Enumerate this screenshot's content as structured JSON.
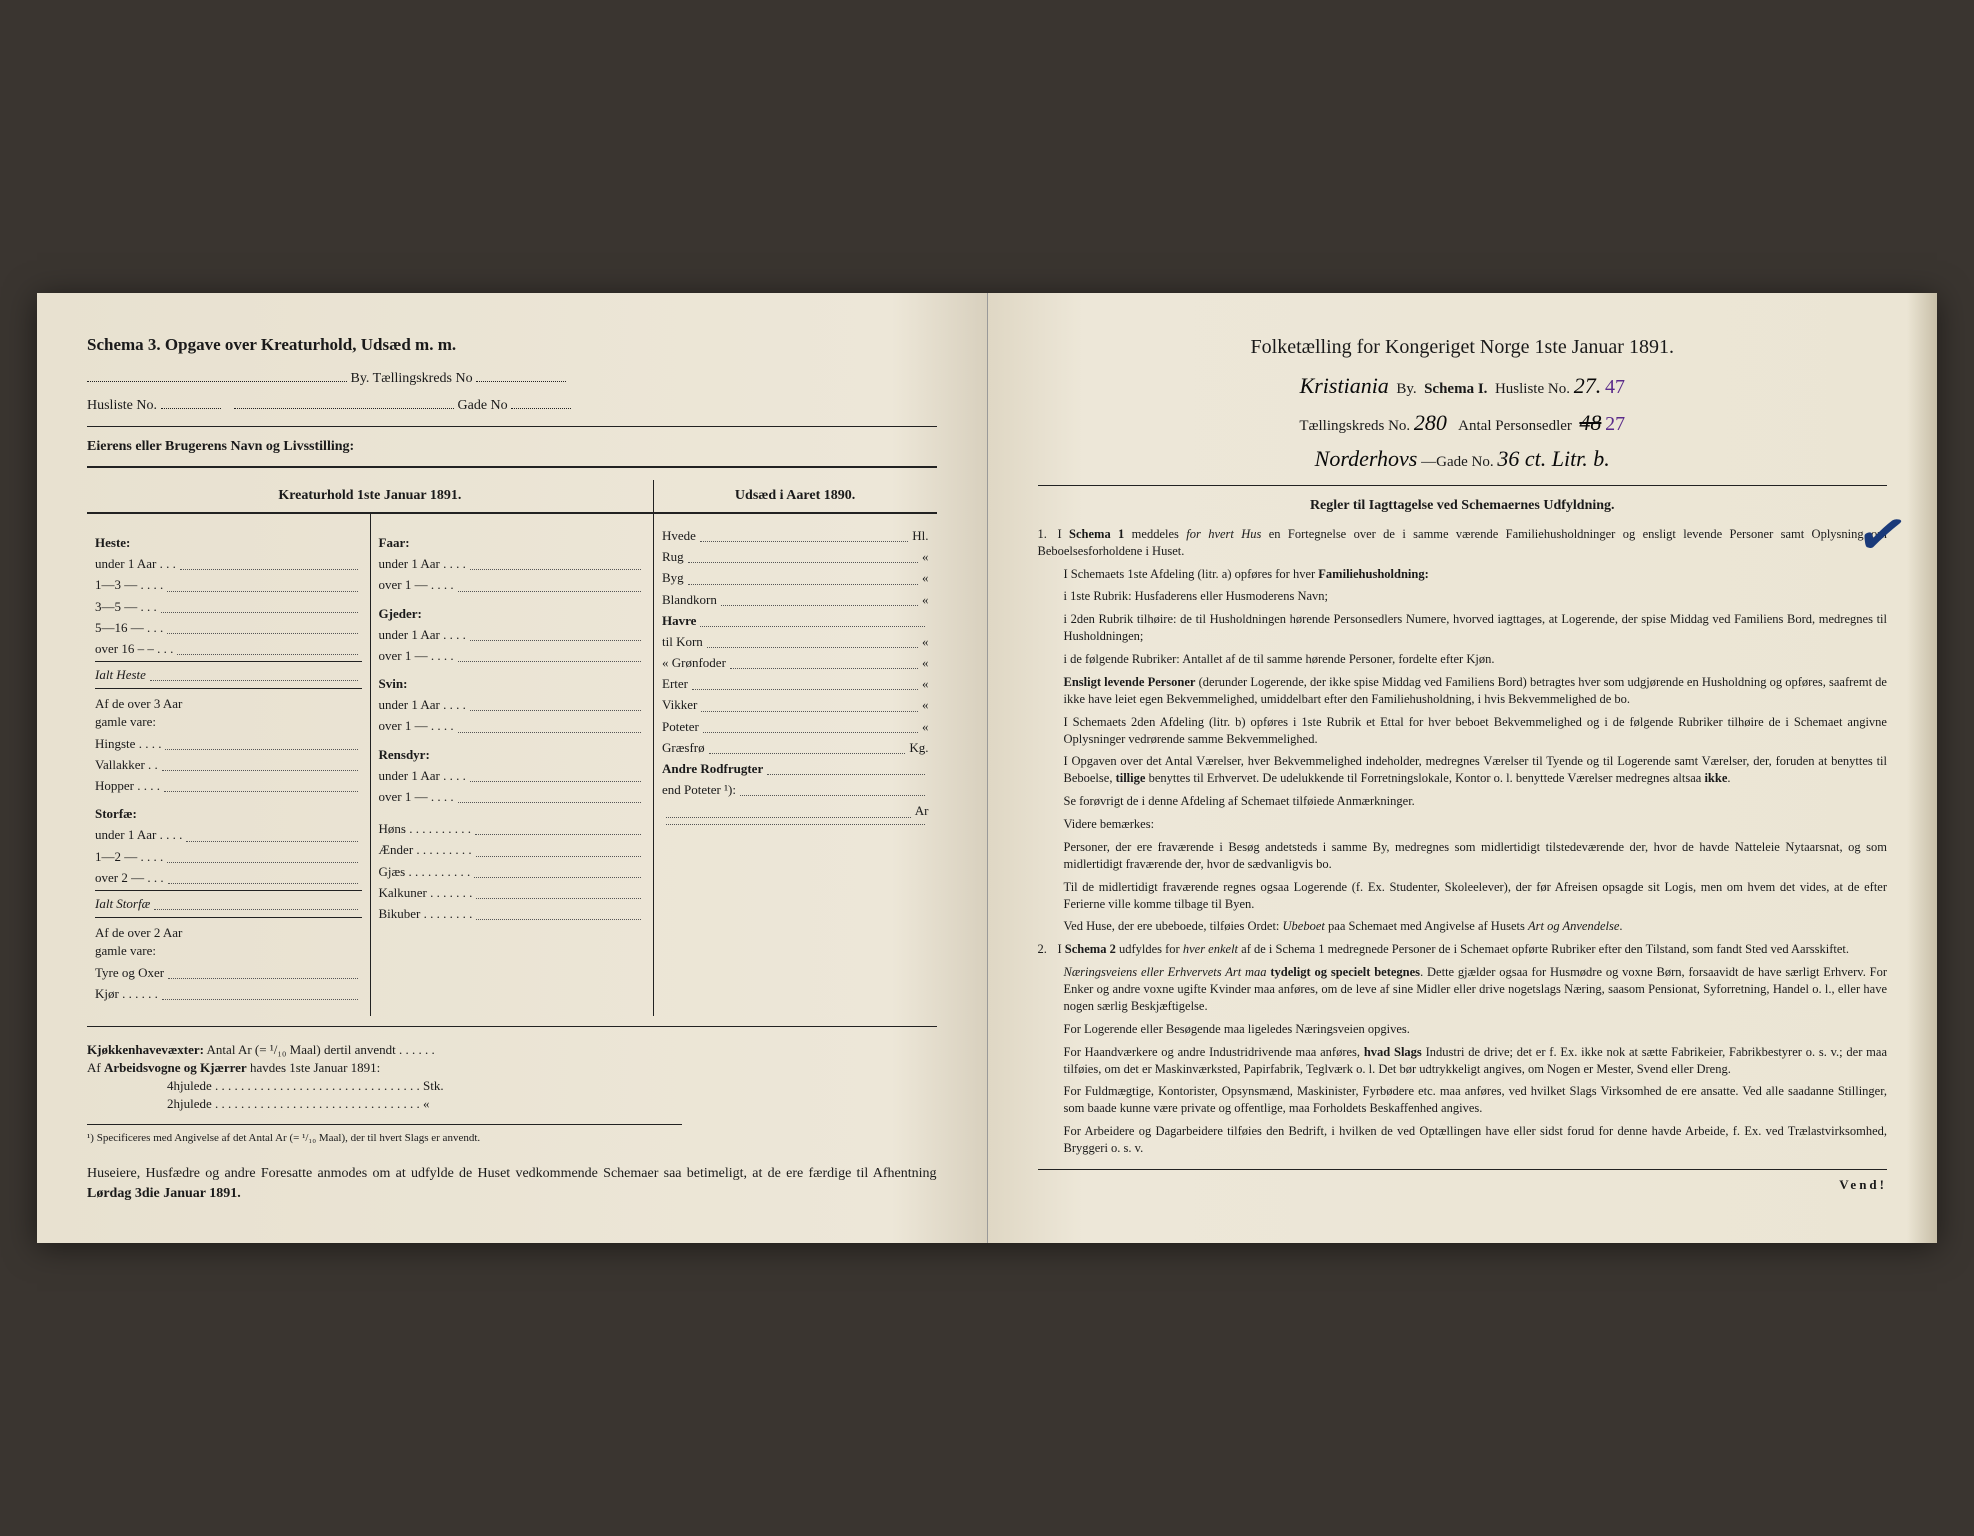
{
  "colors": {
    "page_bg": "#ebe5d6",
    "text": "#1a1a1a",
    "hand_ink": "#0a0a0a",
    "hand_purple": "#5a2a8a",
    "blue_mark": "#1a3a7a"
  },
  "left": {
    "title": "Schema 3.  Opgave over Kreaturhold, Udsæd m. m.",
    "by_label": "By.  Tællingskreds No",
    "husliste_label": "Husliste No.",
    "gade_label": "Gade No",
    "owner_label": "Eierens eller Brugerens Navn og Livsstilling:",
    "heads": {
      "kreatur": "Kreaturhold 1ste Januar 1891.",
      "udsaed": "Udsæd i Aaret 1890."
    },
    "col1": {
      "heste": "Heste:",
      "heste_rows": [
        "under 1 Aar . . .",
        "1—3  —  . . . .",
        "3—5  —  . . .",
        "5—16 —  . . .",
        "over 16 – –  . . ."
      ],
      "ialt_heste": "Ialt Heste",
      "over3": "Af de over 3 Aar\ngamle vare:",
      "over3_rows": [
        "Hingste . . . .",
        "Vallakker . .",
        "Hopper . . . ."
      ],
      "storfae": "Storfæ:",
      "storfae_rows": [
        "under 1 Aar . . . .",
        "1—2  —  . . . .",
        "over 2  —  . . ."
      ],
      "ialt_storfae": "Ialt Storfæ",
      "over2": "Af de over 2 Aar\ngamle vare:",
      "over2_rows": [
        "Tyre og Oxer",
        "Kjør . . . . . ."
      ]
    },
    "col2": {
      "faar": "Faar:",
      "faar_rows": [
        "under 1 Aar . . . .",
        "over 1  —  . . . ."
      ],
      "gjeder": "Gjeder:",
      "gjeder_rows": [
        "under 1 Aar . . . .",
        "over 1  —  . . . ."
      ],
      "svin": "Svin:",
      "svin_rows": [
        "under 1 Aar . . . .",
        "over 1  —  . . . ."
      ],
      "rensdyr": "Rensdyr:",
      "rensdyr_rows": [
        "under 1 Aar . . . .",
        "over 1  —  . . . ."
      ],
      "other": [
        "Høns . . . . . . . . . .",
        "Ænder . . . . . . . . .",
        "Gjæs . . . . . . . . . .",
        "Kalkuner . . . . . . .",
        "Bikuber . . . . . . . ."
      ]
    },
    "col3": {
      "rows": [
        {
          "l": "Hvede",
          "u": "Hl."
        },
        {
          "l": "Rug",
          "u": "«"
        },
        {
          "l": "Byg",
          "u": "«"
        },
        {
          "l": "Blandkorn",
          "u": "«"
        },
        {
          "l": "Havre",
          "u": ""
        },
        {
          "l": "  til Korn",
          "u": "«"
        },
        {
          "l": "  «  Grønfoder",
          "u": "«"
        },
        {
          "l": "Erter",
          "u": "«"
        },
        {
          "l": "Vikker",
          "u": "«"
        },
        {
          "l": "Poteter",
          "u": "«"
        },
        {
          "l": "Græsfrø",
          "u": "Kg."
        },
        {
          "l": "Andre Rodfrugter",
          "u": ""
        },
        {
          "l": "  end Poteter ¹):",
          "u": ""
        },
        {
          "l": "",
          "u": "Ar"
        },
        {
          "l": "",
          "u": ""
        }
      ]
    },
    "kjokken": "Kjøkkenhavevæxter:  Antal Ar (= ¹/₁₀ Maal) dertil anvendt . . . . . .",
    "arbeids": "Af Arbeidsvogne og Kjærrer havdes 1ste Januar 1891:",
    "hjul4": "4hjulede . . . . . . . . . . . . . . . . . . . . . . . . . . . . . . . . Stk.",
    "hjul2": "2hjulede . . . . . . . . . . . . . . . . . . . . . . . . . . . . . . . .  «",
    "footnote": "¹) Specificeres med Angivelse af det Antal Ar (= ¹/₁₀ Maal), der til hvert Slags er anvendt.",
    "closing": "Huseiere, Husfædre og andre Foresatte anmodes om at udfylde de Huset vedkommende Schemaer saa betimeligt, at de ere færdige til Afhentning Lørdag 3die Januar 1891.",
    "closing_bold": "Lørdag 3die Januar 1891."
  },
  "right": {
    "head": "Folketælling for Kongeriget Norge 1ste Januar 1891.",
    "city": "Kristiania",
    "by": "By.",
    "schema": "Schema I.",
    "husliste": "Husliste No.",
    "husliste_val": "27.",
    "husliste_extra": "47",
    "kreds": "Tællingskreds No.",
    "kreds_val": "280",
    "antal": "Antal Personsedler",
    "antal_val": "48",
    "antal_extra": "27",
    "street": "Norderhovs",
    "gade": "—Gade No.",
    "gade_val": "36 ct. Litr. b.",
    "rules_head": "Regler til Iagttagelse ved Schemaernes Udfyldning.",
    "mark": "✓",
    "rules": [
      {
        "n": "1.",
        "t": "I <b>Schema 1</b> meddeles <i>for hvert Hus</i> en Fortegnelse over de i samme værende Familiehusholdninger og ensligt levende Personer samt Oplysning om Beboelsesforholdene i Huset."
      },
      {
        "n": "",
        "t": "I Schemaets 1ste Afdeling (litr. a) opføres for hver <b>Familiehusholdning:</b>"
      },
      {
        "n": "",
        "t": "i 1ste Rubrik: Husfaderens eller Husmoderens Navn;"
      },
      {
        "n": "",
        "t": "i 2den Rubrik tilhøire: de til Husholdningen hørende Personsedlers Numere, hvorved iagttages, at Logerende, der spise Middag ved Familiens Bord, medregnes til Husholdningen;"
      },
      {
        "n": "",
        "t": "i de følgende Rubriker: Antallet af de til samme hørende Personer, fordelte efter Kjøn."
      },
      {
        "n": "",
        "t": "<b>Ensligt levende Personer</b> (derunder Logerende, der ikke spise Middag ved Familiens Bord) betragtes hver som udgjørende en Husholdning og opføres, saafremt de ikke have leiet egen Bekvemmelighed, umiddelbart efter den Familiehusholdning, i hvis Bekvemmelighed de bo."
      },
      {
        "n": "",
        "t": "I Schemaets 2den Afdeling (litr. b) opføres i 1ste Rubrik et Ettal for hver beboet Bekvemmelighed og i de følgende Rubriker tilhøire de i Schemaet angivne Oplysninger vedrørende samme Bekvemmelighed."
      },
      {
        "n": "",
        "t": "I Opgaven over det Antal Værelser, hver Bekvemmelighed indeholder, medregnes Værelser til Tyende og til Logerende samt Værelser, der, foruden at benyttes til Beboelse, <b>tillige</b> benyttes til Erhvervet. De udelukkende til Forretningslokale, Kontor o. l. benyttede Værelser medregnes altsaa <b>ikke</b>."
      },
      {
        "n": "",
        "t": "Se forøvrigt de i denne Afdeling af Schemaet tilføiede Anmærkninger."
      },
      {
        "n": "",
        "t": "Videre bemærkes:"
      },
      {
        "n": "",
        "t": "Personer, der ere fraværende i Besøg andetsteds i samme By, medregnes som midlertidigt tilstedeværende der, hvor de havde Natteleie Nytaarsnat, og som midlertidigt fraværende der, hvor de sædvanligvis bo."
      },
      {
        "n": "",
        "t": "Til de midlertidigt fraværende regnes ogsaa Logerende (f. Ex. Studenter, Skoleelever), der før Afreisen opsagde sit Logis, men om hvem det vides, at de efter Ferierne ville komme tilbage til Byen."
      },
      {
        "n": "",
        "t": "Ved Huse, der ere ubeboede, tilføies Ordet: <i>Ubeboet</i> paa Schemaet med Angivelse af Husets <i>Art og Anvendelse</i>."
      },
      {
        "n": "2.",
        "t": "I <b>Schema 2</b> udfyldes for <i>hver enkelt</i> af de i Schema 1 medregnede Personer de i Schemaet opførte Rubriker efter den Tilstand, som fandt Sted ved Aarsskiftet."
      },
      {
        "n": "",
        "t": "<i>Næringsveiens eller Erhvervets Art maa</i> <b>tydeligt og specielt betegnes</b>. Dette gjælder ogsaa for Husmødre og voxne Børn, forsaavidt de have særligt Erhverv. For Enker og andre voxne ugifte Kvinder maa anføres, om de leve af sine Midler eller drive nogetslags Næring, saasom Pensionat, Syforretning, Handel o. l., eller have nogen særlig Beskjæftigelse."
      },
      {
        "n": "",
        "t": "For Logerende eller Besøgende maa ligeledes Næringsveien opgives."
      },
      {
        "n": "",
        "t": "For Haandværkere og andre Industridrivende maa anføres, <b>hvad Slags</b> Industri de drive; det er f. Ex. ikke nok at sætte Fabrikeier, Fabrikbestyrer o. s. v.; der maa tilføies, om det er Maskinværksted, Papirfabrik, Teglværk o. l. Det bør udtrykkeligt angives, om Nogen er Mester, Svend eller Dreng."
      },
      {
        "n": "",
        "t": "For Fuldmægtige, Kontorister, Opsynsmænd, Maskinister, Fyrbødere etc. maa anføres, ved hvilket Slags Virksomhed de ere ansatte. Ved alle saadanne Stillinger, som baade kunne være private og offentlige, maa Forholdets Beskaffenhed angives."
      },
      {
        "n": "",
        "t": "For Arbeidere og Dagarbeidere tilføies den Bedrift, i hvilken de ved Optællingen have eller sidst forud for denne havde Arbeide, f. Ex. ved Trælastvirksomhed, Bryggeri o. s. v."
      }
    ],
    "vend": "Vend!"
  }
}
